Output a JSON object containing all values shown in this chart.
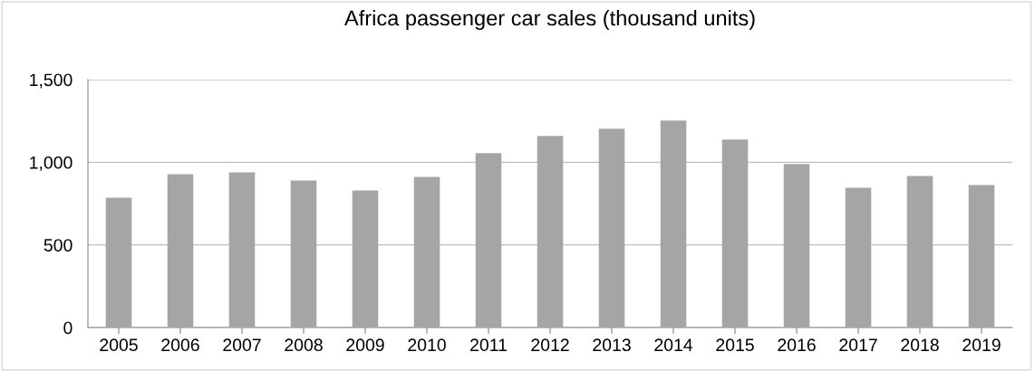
{
  "chart_data": {
    "type": "bar",
    "title": "Africa passenger car sales (thousand units)",
    "categories": [
      "2005",
      "2006",
      "2007",
      "2008",
      "2009",
      "2010",
      "2011",
      "2012",
      "2013",
      "2014",
      "2015",
      "2016",
      "2017",
      "2018",
      "2019"
    ],
    "values": [
      785,
      928,
      939,
      890,
      830,
      912,
      1055,
      1159,
      1203,
      1252,
      1137,
      989,
      846,
      917,
      862
    ],
    "color": "#a5a5a5",
    "ylim": [
      0,
      1500
    ],
    "yticks": [
      {
        "value": 0,
        "label": "0"
      },
      {
        "value": 500,
        "label": "500"
      },
      {
        "value": 1000,
        "label": "1,000"
      },
      {
        "value": 1500,
        "label": "1,500"
      }
    ],
    "grid": "y"
  }
}
